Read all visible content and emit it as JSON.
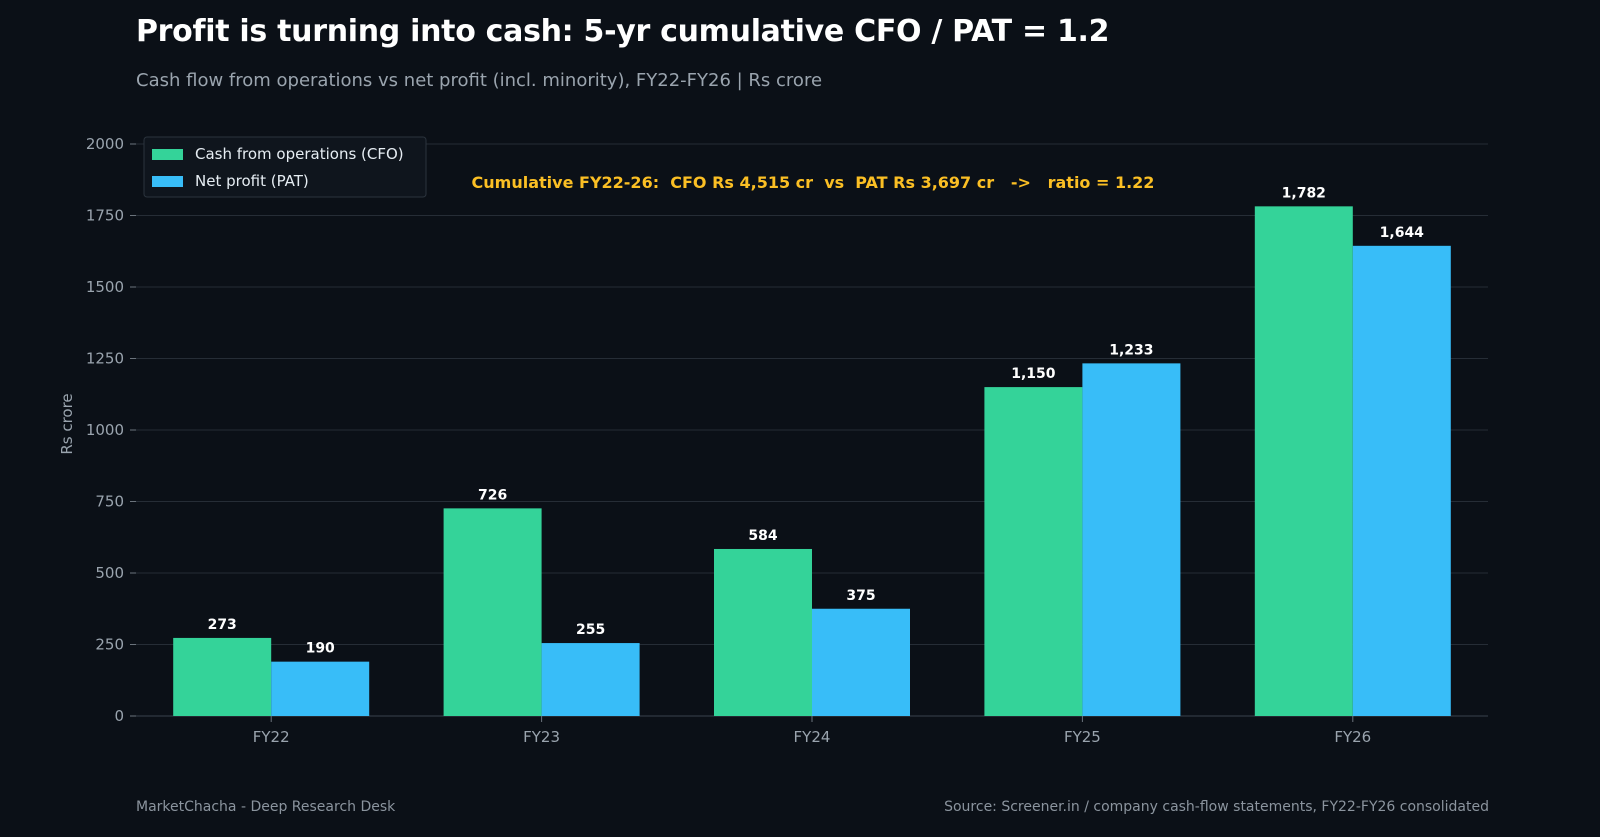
{
  "header": {
    "title": "Profit is turning into cash: 5-yr cumulative CFO / PAT = 1.2",
    "subtitle": "Cash flow from operations vs net profit (incl. minority), FY22-FY26  |  Rs crore"
  },
  "footer": {
    "brand": "MarketChacha - Deep Research Desk",
    "source": "Source: Screener.in / company cash-flow statements, FY22-FY26 consolidated"
  },
  "colors": {
    "background": "#0b1017",
    "cfo": "#34d399",
    "pat": "#38bdf8",
    "annotation": "#fbbf24",
    "grid": "#262d36",
    "axis_text": "#9aa4ae"
  },
  "chart_data": {
    "type": "bar",
    "categories": [
      "FY22",
      "FY23",
      "FY24",
      "FY25",
      "FY26"
    ],
    "series": [
      {
        "name": "Cash from operations (CFO)",
        "values": [
          273,
          726,
          584,
          1150,
          1782
        ],
        "labels": [
          "273",
          "726",
          "584",
          "1,150",
          "1,782"
        ]
      },
      {
        "name": "Net profit (PAT)",
        "values": [
          190,
          255,
          375,
          1233,
          1644
        ],
        "labels": [
          "190",
          "255",
          "375",
          "1,233",
          "1,644"
        ]
      }
    ],
    "ylabel": "Rs crore",
    "ylim": [
      0,
      2000
    ],
    "yticks": [
      0,
      250,
      500,
      750,
      1000,
      1250,
      1500,
      1750,
      2000
    ],
    "grid": true,
    "legend_position": "top-left",
    "annotation": "Cumulative FY22-26:  CFO Rs 4,515 cr  vs  PAT Rs 3,697 cr   ->   ratio = 1.22"
  }
}
